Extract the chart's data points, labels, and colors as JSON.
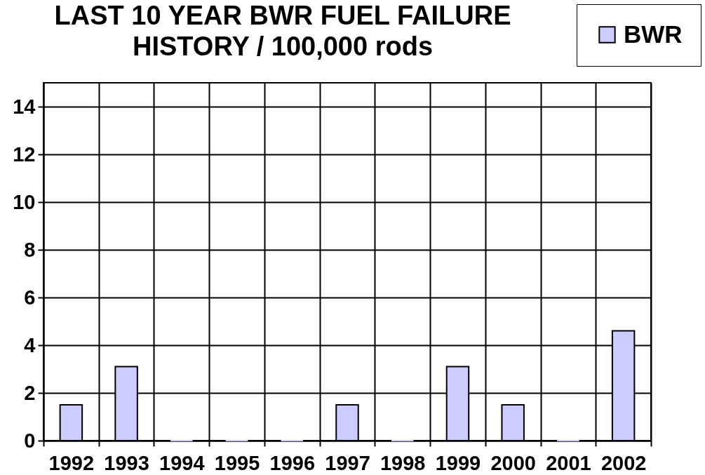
{
  "chart_data": {
    "type": "bar",
    "title": "LAST 10 YEAR BWR FUEL FAILURE\nHISTORY / 100,000 rods",
    "categories": [
      "1992",
      "1993",
      "1994",
      "1995",
      "1996",
      "1997",
      "1998",
      "1999",
      "2000",
      "2001",
      "2002"
    ],
    "series": [
      {
        "name": "BWR",
        "color": "#ccccff",
        "values": [
          1.5,
          3.1,
          0,
          0,
          0,
          1.5,
          0,
          3.1,
          1.5,
          0,
          4.6
        ]
      }
    ],
    "ylim": [
      0,
      15
    ],
    "yticks": [
      0,
      2,
      4,
      6,
      8,
      10,
      12,
      14
    ],
    "grid": true,
    "legend": "top right"
  }
}
